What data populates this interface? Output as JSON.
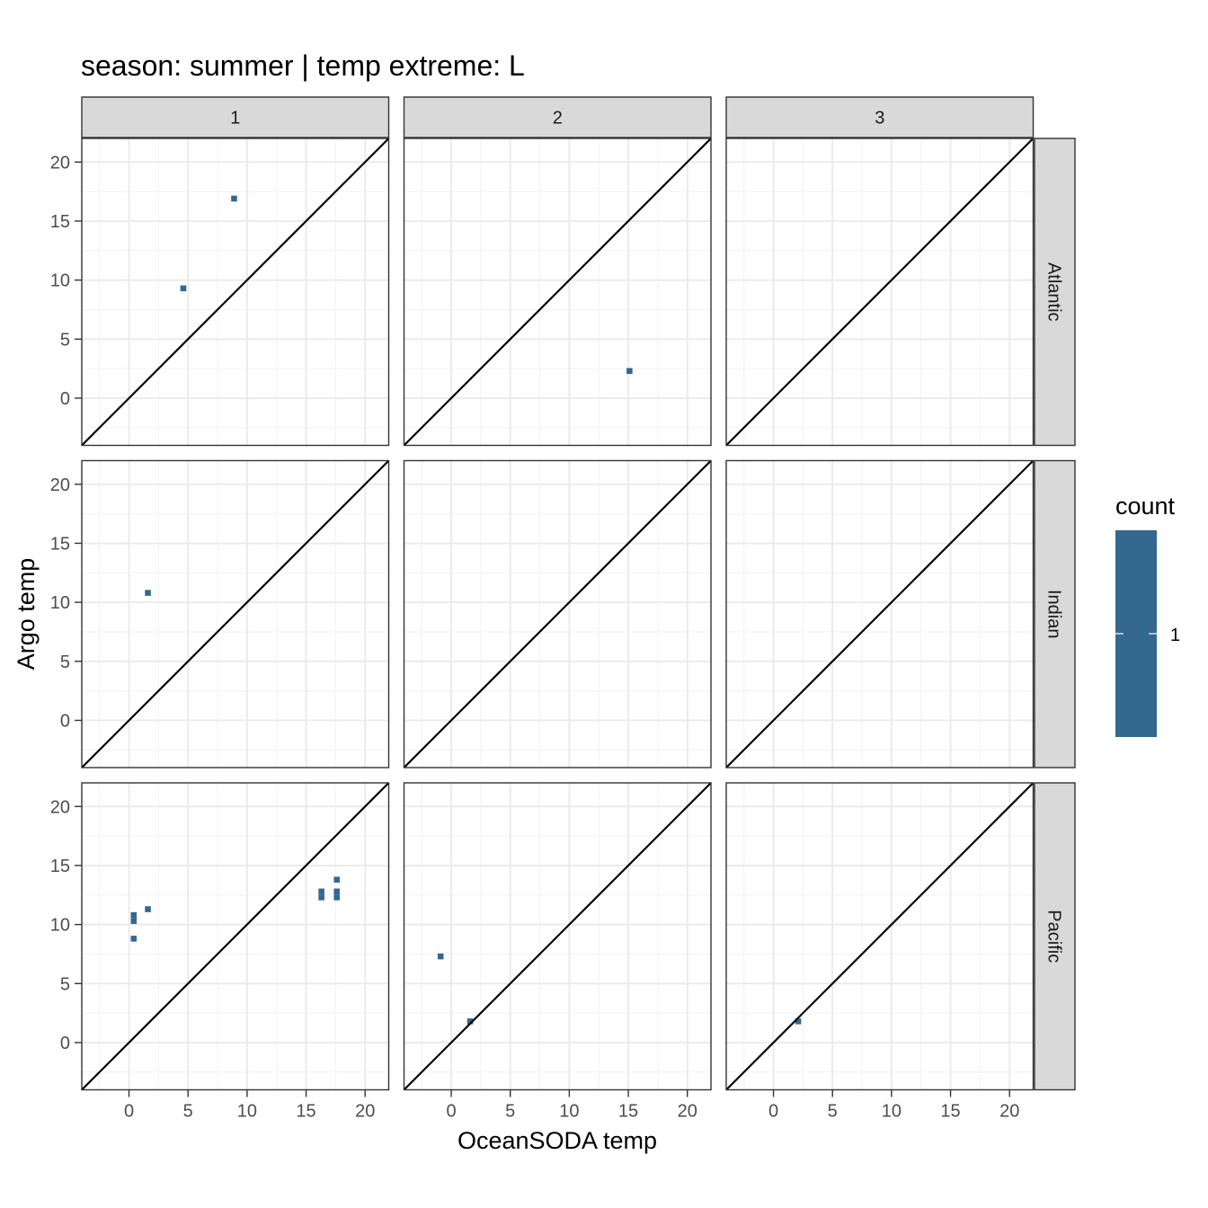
{
  "chart_data": {
    "type": "heatmap",
    "title": "season: summer | temp extreme: L",
    "xlabel": "OceanSODA temp",
    "ylabel": "Argo temp",
    "xlim": [
      -4,
      22
    ],
    "ylim": [
      -4,
      22
    ],
    "x_ticks": [
      0,
      5,
      10,
      15,
      20
    ],
    "y_ticks": [
      0,
      5,
      10,
      15,
      20
    ],
    "grid": true,
    "reference_line": "y = x",
    "columns": [
      "1",
      "2",
      "3"
    ],
    "rows": [
      "Atlantic",
      "Indian",
      "Pacific"
    ],
    "bin_size": 0.5,
    "fill_color": "#35688f",
    "legend": {
      "title": "count",
      "labels": [
        "1"
      ],
      "placement": "right"
    },
    "panels": [
      {
        "row": "Atlantic",
        "col": "1",
        "bins": [
          {
            "x": 4.6,
            "y": 9.3
          },
          {
            "x": 8.9,
            "y": 16.9
          }
        ]
      },
      {
        "row": "Atlantic",
        "col": "2",
        "bins": [
          {
            "x": 15.1,
            "y": 2.3
          }
        ]
      },
      {
        "row": "Atlantic",
        "col": "3",
        "bins": []
      },
      {
        "row": "Indian",
        "col": "1",
        "bins": [
          {
            "x": 1.6,
            "y": 10.8
          }
        ]
      },
      {
        "row": "Indian",
        "col": "2",
        "bins": []
      },
      {
        "row": "Indian",
        "col": "3",
        "bins": []
      },
      {
        "row": "Pacific",
        "col": "1",
        "bins": [
          {
            "x": 0.4,
            "y": 10.8
          },
          {
            "x": 0.4,
            "y": 10.3
          },
          {
            "x": 0.4,
            "y": 8.8
          },
          {
            "x": 1.6,
            "y": 11.3
          },
          {
            "x": 16.3,
            "y": 12.8
          },
          {
            "x": 16.3,
            "y": 12.3
          },
          {
            "x": 17.6,
            "y": 13.8
          },
          {
            "x": 17.6,
            "y": 12.8
          },
          {
            "x": 17.6,
            "y": 12.3
          }
        ]
      },
      {
        "row": "Pacific",
        "col": "2",
        "bins": [
          {
            "x": -0.9,
            "y": 7.3
          },
          {
            "x": 1.6,
            "y": 1.8
          }
        ]
      },
      {
        "row": "Pacific",
        "col": "3",
        "bins": [
          {
            "x": 2.1,
            "y": 1.8
          }
        ]
      }
    ]
  }
}
